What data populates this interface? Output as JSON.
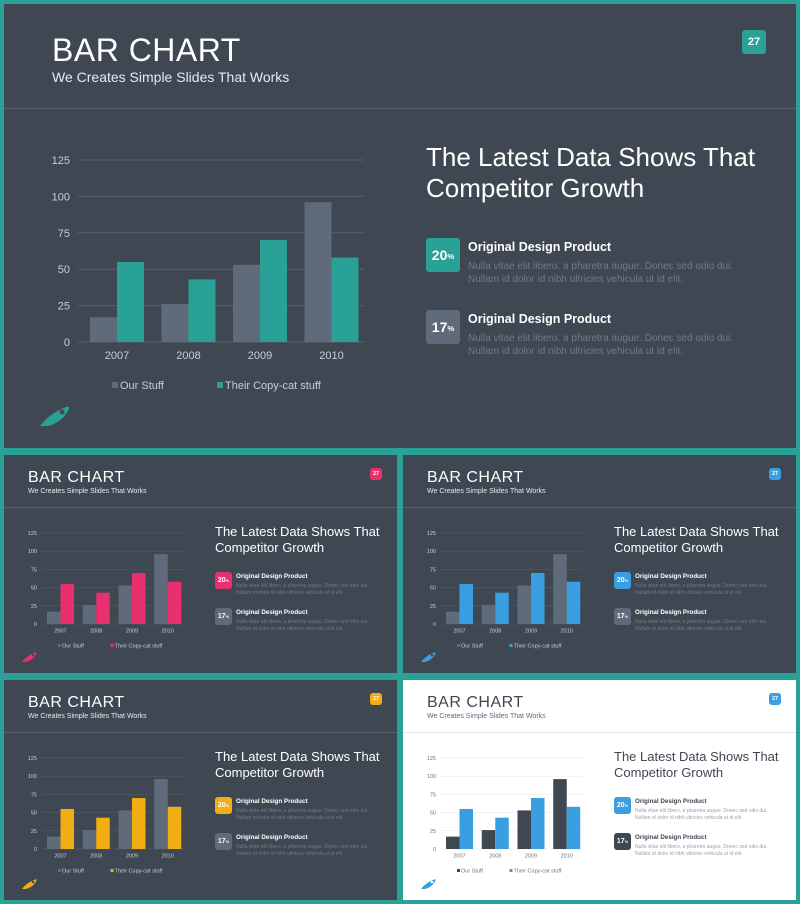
{
  "slides": [
    {
      "theme": "dark",
      "accent": "#2aa197",
      "badge": "27",
      "title": "BAR CHART",
      "subtitle": "We Creates Simple Slides That Works",
      "headline_line1": "The Latest Data Shows That",
      "headline_line2": "Competitor Growth",
      "stats": [
        {
          "value": "20",
          "unit": "%",
          "title": "Original Design Product",
          "desc_line1": "Nulla vitae elit libero, a pharetra augue. Donec sed odio dui.",
          "desc_line2": "Nullam id dolor id nibh ultricies vehicula ut id elit."
        },
        {
          "value": "17",
          "unit": "%",
          "title": "Original Design Product",
          "desc_line1": "Nulla vitae elit libero, a pharetra augue. Donec sed odio dui.",
          "desc_line2": "Nullam id dolor id nibh ultricies vehicula ut id elit."
        }
      ]
    },
    {
      "theme": "dark",
      "accent": "#e8306e",
      "badge": "27",
      "title": "BAR CHART",
      "subtitle": "We Creates Simple Slides That Works",
      "headline_line1": "The Latest Data Shows That",
      "headline_line2": "Competitor Growth",
      "stats": [
        {
          "value": "20",
          "unit": "%",
          "title": "Original Design Product",
          "desc_line1": "Nulla vitae elit libero, a pharetra augue. Donec sed odio dui.",
          "desc_line2": "Nullam id dolor id nibh ultricies vehicula ut id elit."
        },
        {
          "value": "17",
          "unit": "%",
          "title": "Original Design Product",
          "desc_line1": "Nulla vitae elit libero, a pharetra augue. Donec sed odio dui.",
          "desc_line2": "Nullam id dolor id nibh ultricies vehicula ut id elit."
        }
      ]
    },
    {
      "theme": "dark",
      "accent": "#3a9fe0",
      "badge": "27",
      "title": "BAR CHART",
      "subtitle": "We Creates Simple Slides That Works",
      "headline_line1": "The Latest Data Shows That",
      "headline_line2": "Competitor Growth",
      "stats": [
        {
          "value": "20",
          "unit": "%",
          "title": "Original Design Product",
          "desc_line1": "Nulla vitae elit libero, a pharetra augue. Donec sed odio dui.",
          "desc_line2": "Nullam id dolor id nibh ultricies vehicula ut id elit."
        },
        {
          "value": "17",
          "unit": "%",
          "title": "Original Design Product",
          "desc_line1": "Nulla vitae elit libero, a pharetra augue. Donec sed odio dui.",
          "desc_line2": "Nullam id dolor id nibh ultricies vehicula ut id elit."
        }
      ]
    },
    {
      "theme": "dark",
      "accent": "#f2ad13",
      "badge": "27",
      "title": "BAR CHART",
      "subtitle": "We Creates Simple Slides That Works",
      "headline_line1": "The Latest Data Shows That",
      "headline_line2": "Competitor Growth",
      "stats": [
        {
          "value": "20",
          "unit": "%",
          "title": "Original Design Product",
          "desc_line1": "Nulla vitae elit libero, a pharetra augue. Donec sed odio dui.",
          "desc_line2": "Nullam id dolor id nibh ultricies vehicula ut id elit."
        },
        {
          "value": "17",
          "unit": "%",
          "title": "Original Design Product",
          "desc_line1": "Nulla vitae elit libero, a pharetra augue. Donec sed odio dui.",
          "desc_line2": "Nullam id dolor id nibh ultricies vehicula ut id elit."
        }
      ]
    },
    {
      "theme": "light",
      "accent": "#3a9fe0",
      "badge": "27",
      "title": "BAR CHART",
      "subtitle": "We Creates Simple Slides That Works",
      "headline_line1": "The Latest Data Shows That",
      "headline_line2": "Competitor Growth",
      "stats": [
        {
          "value": "20",
          "unit": "%",
          "title": "Original Design Product",
          "desc_line1": "Nulla vitae elit libero, a pharetra augue. Donec sed odio dui.",
          "desc_line2": "Nullam id dolor id nibh ultricies vehicula ut id elit."
        },
        {
          "value": "17",
          "unit": "%",
          "title": "Original Design Product",
          "desc_line1": "Nulla vitae elit libero, a pharetra augue. Donec sed odio dui.",
          "desc_line2": "Nullam id dolor id nibh ultricies vehicula ut id elit."
        }
      ]
    }
  ],
  "chart_data": {
    "type": "bar",
    "categories": [
      "2007",
      "2008",
      "2009",
      "2010"
    ],
    "series": [
      {
        "name": "Our Stuff",
        "values": [
          17,
          26,
          53,
          96
        ]
      },
      {
        "name": "Their Copy-cat stuff",
        "values": [
          55,
          43,
          70,
          58
        ]
      }
    ],
    "yticks": [
      "0",
      "25",
      "50",
      "75",
      "100",
      "125"
    ],
    "ylim": [
      0,
      125
    ],
    "grid": true,
    "legend_position": "bottom",
    "colors": {
      "our_stuff_dark": "#5f6b7a",
      "our_stuff_light": "#3f4752"
    }
  },
  "theme_colors": {
    "dark_bg": "#3f4752",
    "light_bg": "#ffffff",
    "frame": "#2aa197"
  }
}
